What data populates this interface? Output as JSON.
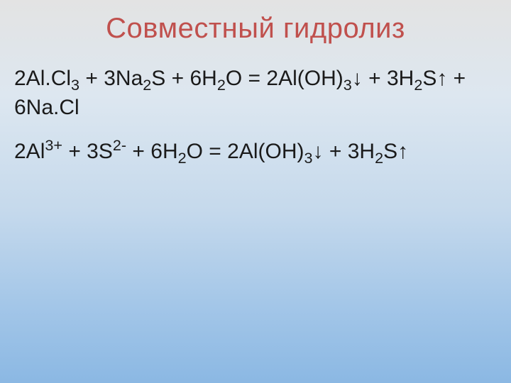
{
  "slide": {
    "title": "Совместный гидролиз",
    "title_color": "#c0504d",
    "title_fontsize": 40,
    "text_color": "#1a1a1a",
    "text_fontsize": 30,
    "background_gradient": [
      "#e3e3e3",
      "#dde7f0",
      "#c5d9ec",
      "#a3c6e8",
      "#8bb8e3"
    ],
    "equations": {
      "eq1": {
        "c1": "2Al.Cl",
        "s1": "3",
        "c2": " + 3Na",
        "s2": "2",
        "c3": "S + 6H",
        "s3": "2",
        "c4": "O = 2Al(OH)",
        "s4": "3",
        "c5": "↓ + 3H",
        "s5": "2",
        "c6": "S↑ + 6Na.Cl"
      },
      "eq2": {
        "c1": "2Al",
        "p1": "3+",
        "c2": " + 3S",
        "p2": "2-",
        "c3": " + 6H",
        "s1": "2",
        "c4": "O = 2Al(OH)",
        "s2": "3",
        "c5": "↓ + 3H",
        "s3": "2",
        "c6": "S↑"
      }
    }
  }
}
